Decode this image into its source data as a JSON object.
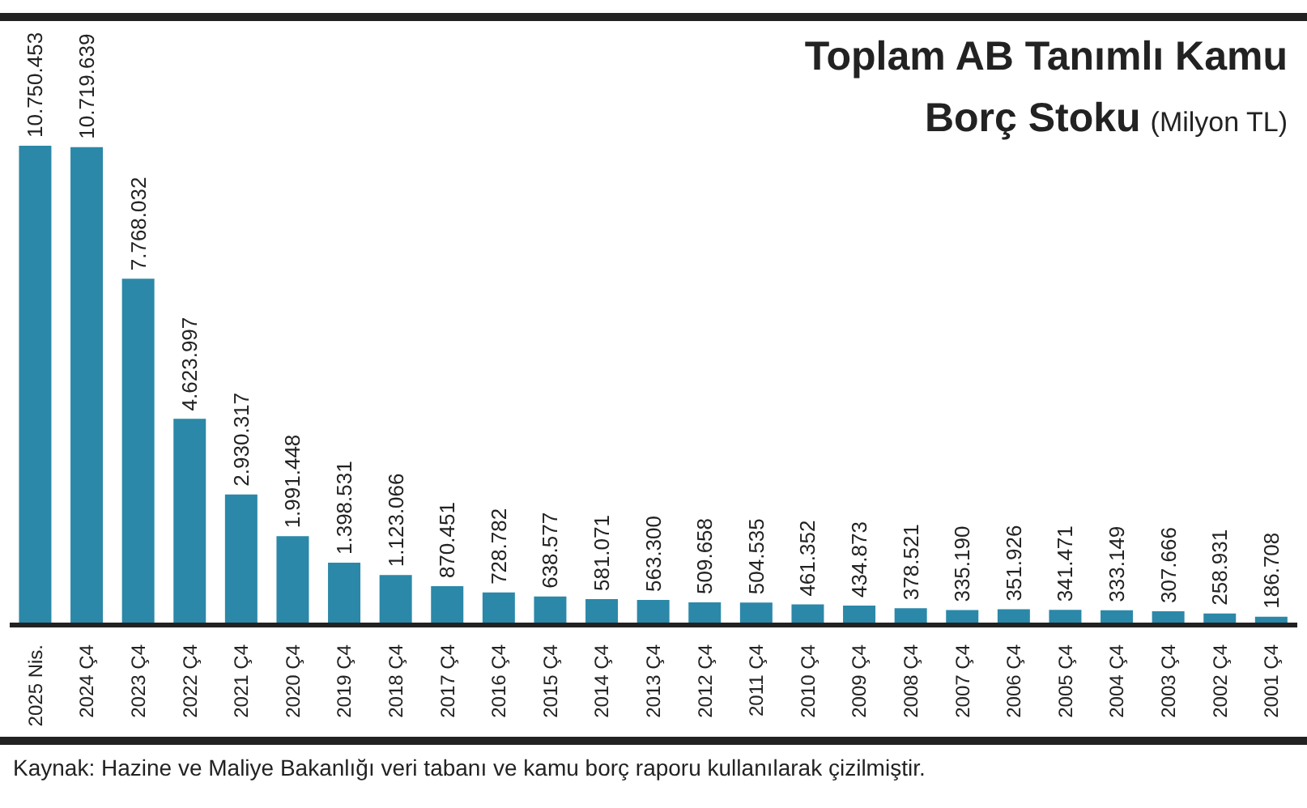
{
  "chart_data": {
    "type": "bar",
    "title": "Toplam AB Tanımlı Kamu Borç Stoku",
    "subtitle": "(Milyon TL)",
    "categories": [
      "2025 Nis.",
      "2024 Ç4",
      "2023 Ç4",
      "2022 Ç4",
      "2021 Ç4",
      "2020 Ç4",
      "2019 Ç4",
      "2018 Ç4",
      "2017 Ç4",
      "2016 Ç4",
      "2015 Ç4",
      "2014 Ç4",
      "2013 Ç4",
      "2012 Ç4",
      "2011 Ç4",
      "2010 Ç4",
      "2009 Ç4",
      "2008 Ç4",
      "2007 Ç4",
      "2006 Ç4",
      "2005 Ç4",
      "2004 Ç4",
      "2003 Ç4",
      "2002 Ç4",
      "2001 Ç4"
    ],
    "values": [
      10750453,
      10719639,
      7768032,
      4623997,
      2930317,
      1991448,
      1398531,
      1123066,
      870451,
      728782,
      638577,
      581071,
      563300,
      509658,
      504535,
      461352,
      434873,
      378521,
      335190,
      351926,
      341471,
      333149,
      307666,
      258931,
      186708
    ],
    "value_labels": [
      "10.750.453",
      "10.719.639",
      "7.768.032",
      "4.623.997",
      "2.930.317",
      "1.991.448",
      "1.398.531",
      "1.123.066",
      "870.451",
      "728.782",
      "638.577",
      "581.071",
      "563.300",
      "509.658",
      "504.535",
      "461.352",
      "434.873",
      "378.521",
      "335.190",
      "351.926",
      "341.471",
      "333.149",
      "307.666",
      "258.931",
      "186.708"
    ],
    "color": "#2b88a8",
    "grid": false,
    "legend": false,
    "annotations": [
      "Kaynak: Hazine ve Maliye Bakanlığı veri tabanı ve kamu borç raporu kullanılarak çizilmiştir."
    ]
  }
}
